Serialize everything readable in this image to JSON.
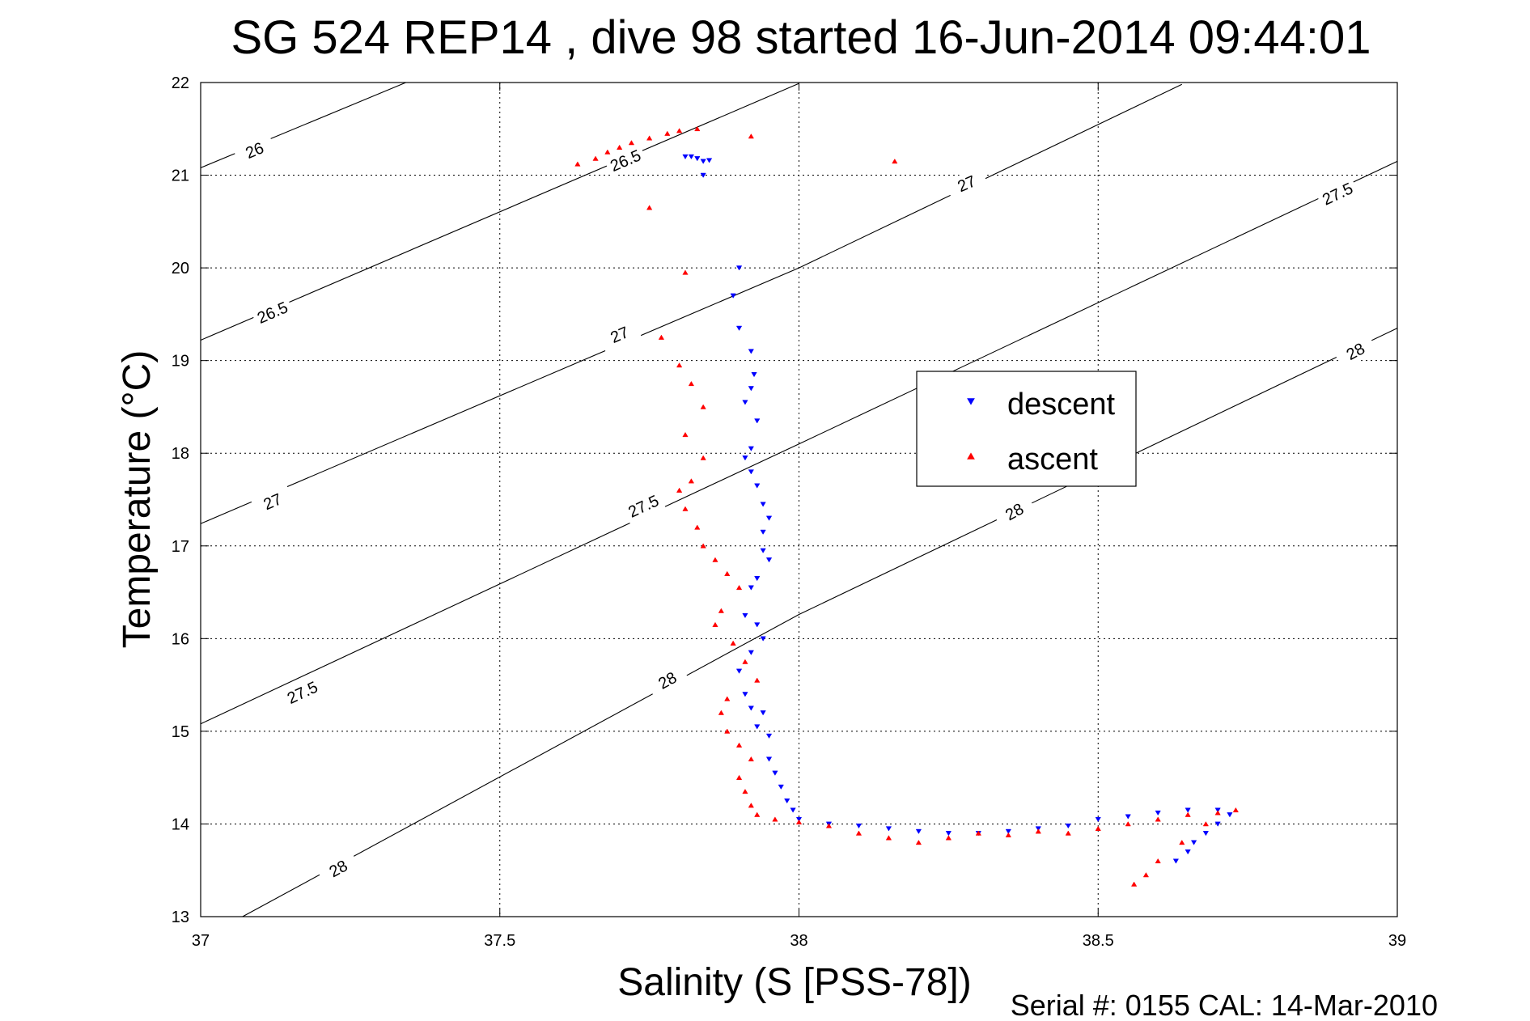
{
  "chart_data": {
    "type": "scatter",
    "title": "SG 524   REP14  , dive 98 started 16-Jun-2014 09:44:01",
    "xlabel": "Salinity (S [PSS-78])",
    "ylabel": "Temperature (°C)",
    "footer": "Serial #: 0155  CAL: 14-Mar-2010",
    "xlim": [
      37,
      39
    ],
    "ylim": [
      13,
      22
    ],
    "xticks": [
      37,
      37.5,
      38,
      38.5,
      39
    ],
    "xtick_labels": [
      "37",
      "37.5",
      "38",
      "38.5",
      "39"
    ],
    "yticks": [
      13,
      14,
      15,
      16,
      17,
      18,
      19,
      20,
      21,
      22
    ],
    "ytick_labels": [
      "13",
      "14",
      "15",
      "16",
      "17",
      "18",
      "19",
      "20",
      "21",
      "22"
    ],
    "grid": true,
    "legend_position": "right-center",
    "isopycnals": [
      {
        "sigma": "26",
        "points": [
          [
            37,
            21.08
          ],
          [
            37.343,
            22.0
          ]
        ],
        "labels": [
          [
            37.09,
            21.27
          ]
        ]
      },
      {
        "sigma": "26.5",
        "points": [
          [
            37,
            19.22
          ],
          [
            38.0,
            21.99
          ]
        ],
        "labels": [
          [
            37.12,
            19.52
          ],
          [
            37.71,
            21.16
          ]
        ]
      },
      {
        "sigma": "27",
        "points": [
          [
            37,
            17.24
          ],
          [
            38.0,
            20.0
          ],
          [
            38.64,
            21.98
          ]
        ],
        "labels": [
          [
            37.12,
            17.48
          ],
          [
            37.7,
            19.28
          ],
          [
            38.28,
            20.91
          ]
        ]
      },
      {
        "sigma": "27.5",
        "points": [
          [
            37,
            15.08
          ],
          [
            38.0,
            18.1
          ],
          [
            39.0,
            21.15
          ]
        ],
        "labels": [
          [
            37.17,
            15.42
          ],
          [
            37.74,
            17.43
          ],
          [
            38.32,
            18.76
          ],
          [
            38.9,
            20.8
          ]
        ]
      },
      {
        "sigma": "28",
        "points": [
          [
            37.07,
            13.0
          ],
          [
            38.0,
            16.26
          ],
          [
            39.0,
            19.35
          ]
        ],
        "labels": [
          [
            37.23,
            13.52
          ],
          [
            37.78,
            15.55
          ],
          [
            38.36,
            17.37
          ],
          [
            38.93,
            19.1
          ]
        ]
      }
    ],
    "series": [
      {
        "name": "descent",
        "color": "#0000ff",
        "marker": "triangle-down",
        "x": [
          37.82,
          37.81,
          37.83,
          37.84,
          37.85,
          37.84,
          37.9,
          37.89,
          37.9,
          37.92,
          37.925,
          37.92,
          37.91,
          37.93,
          37.92,
          37.91,
          37.92,
          37.93,
          37.94,
          37.95,
          37.94,
          37.94,
          37.95,
          37.93,
          37.92,
          37.91,
          37.93,
          37.94,
          37.92,
          37.9,
          37.91,
          37.92,
          37.94,
          37.93,
          37.95,
          37.95,
          37.96,
          37.97,
          37.98,
          37.99,
          38.0,
          38.05,
          38.1,
          38.15,
          38.2,
          38.25,
          38.3,
          38.35,
          38.4,
          38.45,
          38.5,
          38.55,
          38.6,
          38.65,
          38.7,
          38.72,
          38.7,
          38.68,
          38.66,
          38.65,
          38.63
        ],
        "y": [
          21.2,
          21.2,
          21.18,
          21.15,
          21.16,
          21.0,
          20.0,
          19.7,
          19.35,
          19.1,
          18.85,
          18.7,
          18.55,
          18.35,
          18.05,
          17.95,
          17.8,
          17.65,
          17.45,
          17.3,
          17.15,
          16.95,
          16.85,
          16.65,
          16.55,
          16.25,
          16.15,
          16.0,
          15.85,
          15.65,
          15.4,
          15.25,
          15.2,
          15.05,
          14.95,
          14.7,
          14.55,
          14.4,
          14.25,
          14.15,
          14.05,
          14.0,
          13.98,
          13.95,
          13.92,
          13.9,
          13.9,
          13.92,
          13.95,
          13.98,
          14.05,
          14.08,
          14.12,
          14.15,
          14.15,
          14.1,
          14.0,
          13.9,
          13.8,
          13.7,
          13.6
        ]
      },
      {
        "name": "ascent",
        "color": "#ff0000",
        "marker": "triangle-up",
        "x": [
          37.63,
          37.66,
          37.68,
          37.7,
          37.72,
          37.75,
          37.78,
          37.8,
          37.83,
          37.92,
          38.16,
          37.75,
          37.81,
          37.77,
          37.8,
          37.82,
          37.84,
          37.81,
          37.84,
          37.82,
          37.8,
          37.81,
          37.83,
          37.84,
          37.86,
          37.88,
          37.9,
          37.87,
          37.86,
          37.89,
          37.91,
          37.93,
          37.88,
          37.87,
          37.88,
          37.9,
          37.92,
          37.9,
          37.91,
          37.92,
          37.93,
          37.96,
          38.0,
          38.05,
          38.1,
          38.15,
          38.2,
          38.25,
          38.3,
          38.35,
          38.4,
          38.45,
          38.5,
          38.55,
          38.6,
          38.65,
          38.7,
          38.73,
          38.68,
          38.64,
          38.6,
          38.58,
          38.56
        ],
        "y": [
          21.12,
          21.18,
          21.25,
          21.3,
          21.35,
          21.4,
          21.45,
          21.48,
          21.5,
          21.42,
          21.15,
          20.65,
          19.95,
          19.25,
          18.95,
          18.75,
          18.5,
          18.2,
          17.95,
          17.7,
          17.6,
          17.4,
          17.2,
          17.0,
          16.85,
          16.7,
          16.55,
          16.3,
          16.15,
          15.95,
          15.75,
          15.55,
          15.35,
          15.2,
          15.0,
          14.85,
          14.7,
          14.5,
          14.35,
          14.2,
          14.1,
          14.05,
          14.02,
          13.98,
          13.9,
          13.85,
          13.8,
          13.85,
          13.9,
          13.88,
          13.92,
          13.9,
          13.95,
          14.0,
          14.05,
          14.1,
          14.12,
          14.15,
          14.0,
          13.8,
          13.6,
          13.45,
          13.35
        ]
      }
    ]
  }
}
